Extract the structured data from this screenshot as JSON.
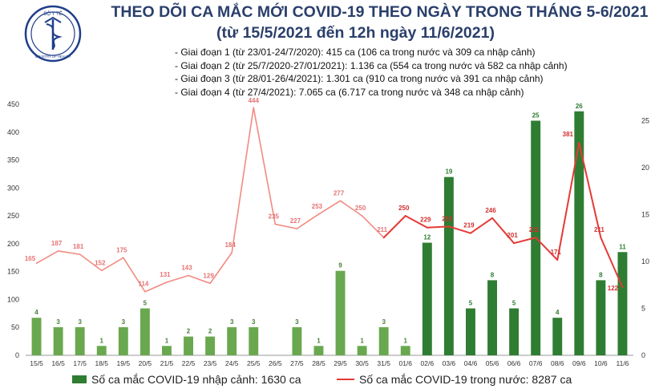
{
  "header": {
    "logo_text_top": "BỘ Y TẾ",
    "logo_text_bottom": "MINISTRY OF HEALTH",
    "title_line1": "THEO DÕI CA MẮC MỚI COVID-19 THEO NGÀY TRONG THÁNG 5-6/2021",
    "title_line2": "(từ 15/5/2021 đến 12h ngày 11/6/2021)",
    "phases": [
      "- Giai đoạn 1 (từ 23/01-24/7/2020): 415 ca (106 ca trong nước và 309 ca nhập cảnh)",
      "- Giai đoạn 2 (từ 25/7/2020-27/01/2021): 1.136 ca (554 ca trong nước và 582 ca nhập cảnh)",
      "- Giai đoạn 3 (từ 28/01-26/4/2021): 1.301 ca (910 ca trong nước và 391 ca nhập cảnh)",
      "- Giai đoạn 4 (từ 27/4/2021): 7.065 ca (6.717 ca trong nước và 348 ca nhập cảnh)"
    ]
  },
  "chart_data": {
    "type": "bar+line",
    "title": "THEO DÕI CA MẮC MỚI COVID-19 THEO NGÀY TRONG THÁNG 5-6/2021",
    "subtitle": "(từ 15/5/2021 đến 12h ngày 11/6/2021)",
    "categories": [
      "15/5",
      "16/5",
      "17/5",
      "18/5",
      "19/5",
      "20/5",
      "21/5",
      "22/5",
      "23/5",
      "24/5",
      "25/5",
      "26/5",
      "27/5",
      "28/5",
      "29/5",
      "30/5",
      "31/5",
      "01/6",
      "02/6",
      "03/6",
      "04/6",
      "05/6",
      "06/6",
      "07/6",
      "08/6",
      "09/6",
      "10/6",
      "11/6"
    ],
    "series": [
      {
        "name": "Số ca mắc COVID-19 nhập cảnh: 1630 ca",
        "kind": "bar",
        "axis": "right",
        "values": [
          4,
          3,
          3,
          1,
          3,
          5,
          1,
          2,
          2,
          3,
          3,
          null,
          3,
          1,
          9,
          1,
          3,
          1,
          12,
          19,
          5,
          8,
          5,
          25,
          4,
          26,
          8,
          11
        ],
        "color_light": "#6aa84f",
        "color_dark": "#2e7d32"
      },
      {
        "name": "Số ca mắc COVID-19 trong nước: 8287 ca",
        "kind": "line",
        "axis": "left",
        "values": [
          165,
          187,
          181,
          152,
          175,
          114,
          131,
          143,
          129,
          184,
          444,
          235,
          227,
          253,
          277,
          250,
          211,
          250,
          229,
          231,
          219,
          246,
          201,
          211,
          171,
          381,
          211,
          122
        ],
        "color_light": "#f28b82",
        "color_dark": "#e53935"
      }
    ],
    "y_left": {
      "ticks": [
        0,
        50,
        100,
        150,
        200,
        250,
        300,
        350,
        400,
        450
      ],
      "ylim": [
        0,
        450
      ]
    },
    "y_right": {
      "ticks": [
        0,
        5,
        10,
        15,
        20,
        25
      ],
      "ylim": [
        0,
        26.75
      ]
    },
    "legend_position": "bottom",
    "grid": false
  }
}
